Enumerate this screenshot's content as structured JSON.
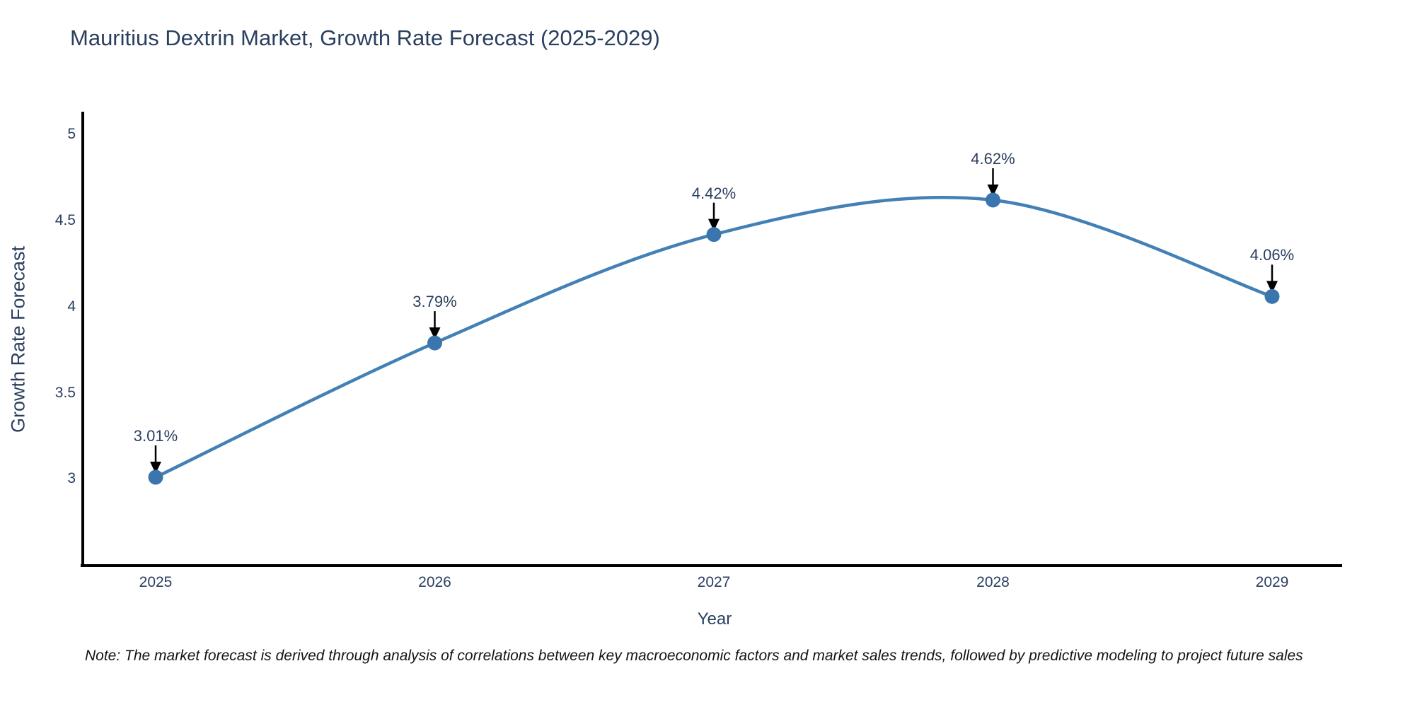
{
  "chart_data": {
    "type": "line",
    "title": "Mauritius Dextrin Market, Growth Rate Forecast (2025-2029)",
    "xlabel": "Year",
    "ylabel": "Growth Rate Forecast",
    "x": [
      2025,
      2026,
      2027,
      2028,
      2029
    ],
    "series": [
      {
        "name": "Growth Rate Forecast",
        "values": [
          3.01,
          3.79,
          4.42,
          4.62,
          4.06
        ]
      }
    ],
    "point_labels": [
      "3.01%",
      "3.79%",
      "4.42%",
      "4.62%",
      "4.06%"
    ],
    "yticks": [
      3,
      3.5,
      4,
      4.5,
      5
    ],
    "ylim": [
      2.49,
      5.12
    ],
    "grid": false,
    "legend_position": "none",
    "line_shape": "spline",
    "colors": {
      "line": "#4380b5",
      "marker": "#3a76ad",
      "axis": "#000000",
      "text": "#2a3f5f",
      "annotation_arrow": "#000000"
    },
    "note": "Note: The market forecast is derived through analysis of correlations between key macroeconomic factors and market sales trends, followed by predictive modeling to project future sales"
  }
}
